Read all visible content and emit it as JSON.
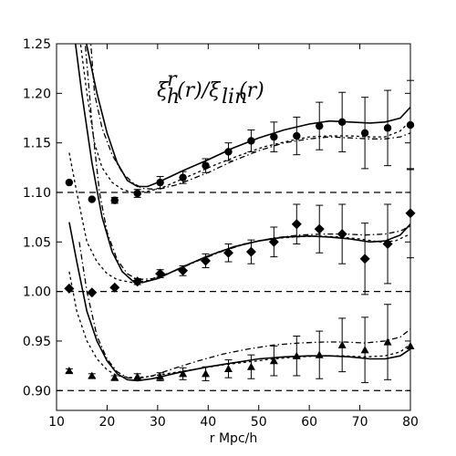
{
  "chart_data": {
    "type": "scatter",
    "title": "",
    "annotation": "ξ_h^r(r)/ξ_lin(r)",
    "xlabel": "r Mpc/h",
    "ylabel": "",
    "xlim": [
      10,
      80
    ],
    "ylim": [
      0.88,
      1.25
    ],
    "x_ticks": [
      "10",
      "20",
      "30",
      "40",
      "50",
      "60",
      "70",
      "80"
    ],
    "y_ticks": [
      "0.90",
      "0.95",
      "1.00",
      "1.05",
      "1.10",
      "1.15",
      "1.20",
      "1.25"
    ],
    "grid": false,
    "reference_lines": [
      1.1,
      1.0,
      0.9
    ],
    "series": [
      {
        "marker": "circle",
        "points": [
          {
            "x": 12.5,
            "y": 1.11,
            "err": 0.0
          },
          {
            "x": 17.0,
            "y": 1.093,
            "err": 0.0
          },
          {
            "x": 21.5,
            "y": 1.092,
            "err": 0.003
          },
          {
            "x": 26.0,
            "y": 1.099,
            "err": 0.004
          },
          {
            "x": 30.5,
            "y": 1.11,
            "err": 0.006
          },
          {
            "x": 35.0,
            "y": 1.115,
            "err": 0.006
          },
          {
            "x": 39.5,
            "y": 1.127,
            "err": 0.007
          },
          {
            "x": 44.0,
            "y": 1.141,
            "err": 0.009
          },
          {
            "x": 48.5,
            "y": 1.152,
            "err": 0.011
          },
          {
            "x": 53.0,
            "y": 1.156,
            "err": 0.015
          },
          {
            "x": 57.5,
            "y": 1.157,
            "err": 0.019
          },
          {
            "x": 62.0,
            "y": 1.167,
            "err": 0.024
          },
          {
            "x": 66.5,
            "y": 1.171,
            "err": 0.03
          },
          {
            "x": 71.0,
            "y": 1.16,
            "err": 0.036
          },
          {
            "x": 75.5,
            "y": 1.165,
            "err": 0.038
          },
          {
            "x": 80.0,
            "y": 1.168,
            "err": 0.045
          }
        ],
        "solid": [
          [
            11.5,
            1.3
          ],
          [
            15.5,
            1.26
          ],
          [
            18.0,
            1.2
          ],
          [
            20.0,
            1.16
          ],
          [
            22.0,
            1.13
          ],
          [
            24.0,
            1.112
          ],
          [
            26.0,
            1.106
          ],
          [
            28.0,
            1.106
          ],
          [
            30.0,
            1.11
          ],
          [
            35.0,
            1.122
          ],
          [
            40.0,
            1.133
          ],
          [
            45.0,
            1.145
          ],
          [
            50.0,
            1.155
          ],
          [
            55.0,
            1.163
          ],
          [
            60.0,
            1.169
          ],
          [
            64.0,
            1.172
          ],
          [
            68.0,
            1.171
          ],
          [
            72.0,
            1.17
          ],
          [
            75.0,
            1.171
          ],
          [
            78.0,
            1.175
          ],
          [
            80.0,
            1.186
          ]
        ],
        "dashed": [
          [
            14.5,
            1.26
          ],
          [
            16.0,
            1.2
          ],
          [
            17.5,
            1.15
          ],
          [
            19.0,
            1.125
          ],
          [
            21.0,
            1.11
          ],
          [
            23.0,
            1.103
          ],
          [
            25.0,
            1.1
          ],
          [
            28.0,
            1.101
          ],
          [
            31.0,
            1.105
          ],
          [
            36.0,
            1.116
          ],
          [
            41.0,
            1.127
          ],
          [
            46.0,
            1.137
          ],
          [
            51.0,
            1.146
          ],
          [
            56.0,
            1.152
          ],
          [
            60.0,
            1.156
          ],
          [
            64.0,
            1.157
          ],
          [
            68.0,
            1.157
          ],
          [
            72.0,
            1.156
          ],
          [
            75.0,
            1.156
          ],
          [
            78.0,
            1.162
          ],
          [
            80.0,
            1.172
          ]
        ],
        "dashdot": [
          [
            16.5,
            1.27
          ],
          [
            17.5,
            1.2
          ],
          [
            19.0,
            1.165
          ],
          [
            21.0,
            1.138
          ],
          [
            23.0,
            1.12
          ],
          [
            25.0,
            1.11
          ],
          [
            27.0,
            1.104
          ],
          [
            30.0,
            1.103
          ],
          [
            34.0,
            1.108
          ],
          [
            40.0,
            1.12
          ],
          [
            45.0,
            1.132
          ],
          [
            50.0,
            1.142
          ],
          [
            55.0,
            1.15
          ],
          [
            60.0,
            1.154
          ],
          [
            64.0,
            1.156
          ],
          [
            68.0,
            1.155
          ],
          [
            72.0,
            1.154
          ],
          [
            75.0,
            1.154
          ],
          [
            78.0,
            1.156
          ],
          [
            80.0,
            1.16
          ]
        ]
      },
      {
        "marker": "diamond",
        "points": [
          {
            "x": 12.5,
            "y": 1.003,
            "err": 0.0
          },
          {
            "x": 17.0,
            "y": 0.999,
            "err": 0.0
          },
          {
            "x": 21.5,
            "y": 1.004,
            "err": 0.0
          },
          {
            "x": 26.0,
            "y": 1.01,
            "err": 0.003
          },
          {
            "x": 30.5,
            "y": 1.018,
            "err": 0.004
          },
          {
            "x": 35.0,
            "y": 1.021,
            "err": 0.005
          },
          {
            "x": 39.5,
            "y": 1.031,
            "err": 0.007
          },
          {
            "x": 44.0,
            "y": 1.039,
            "err": 0.009
          },
          {
            "x": 48.5,
            "y": 1.04,
            "err": 0.012
          },
          {
            "x": 53.0,
            "y": 1.05,
            "err": 0.015
          },
          {
            "x": 57.5,
            "y": 1.068,
            "err": 0.02
          },
          {
            "x": 62.0,
            "y": 1.063,
            "err": 0.024
          },
          {
            "x": 66.5,
            "y": 1.058,
            "err": 0.03
          },
          {
            "x": 71.0,
            "y": 1.033,
            "err": 0.036
          },
          {
            "x": 75.5,
            "y": 1.048,
            "err": 0.04
          },
          {
            "x": 80.0,
            "y": 1.079,
            "err": 0.045
          }
        ],
        "solid": [
          [
            13.0,
            1.28
          ],
          [
            15.0,
            1.2
          ],
          [
            17.0,
            1.13
          ],
          [
            19.0,
            1.075
          ],
          [
            21.0,
            1.04
          ],
          [
            23.0,
            1.02
          ],
          [
            25.0,
            1.011
          ],
          [
            27.0,
            1.009
          ],
          [
            30.0,
            1.013
          ],
          [
            35.0,
            1.025
          ],
          [
            40.0,
            1.036
          ],
          [
            45.0,
            1.045
          ],
          [
            50.0,
            1.051
          ],
          [
            55.0,
            1.055
          ],
          [
            60.0,
            1.056
          ],
          [
            64.0,
            1.055
          ],
          [
            68.0,
            1.053
          ],
          [
            72.0,
            1.05
          ],
          [
            75.0,
            1.051
          ],
          [
            78.0,
            1.057
          ],
          [
            80.0,
            1.068
          ]
        ],
        "dashed": [
          [
            12.5,
            1.14
          ],
          [
            14.0,
            1.1
          ],
          [
            16.0,
            1.05
          ],
          [
            18.0,
            1.03
          ],
          [
            20.0,
            1.018
          ],
          [
            22.0,
            1.012
          ],
          [
            25.0,
            1.009
          ],
          [
            28.0,
            1.011
          ],
          [
            32.0,
            1.018
          ],
          [
            37.0,
            1.029
          ],
          [
            42.0,
            1.04
          ],
          [
            47.0,
            1.048
          ],
          [
            52.0,
            1.053
          ],
          [
            57.0,
            1.055
          ],
          [
            62.0,
            1.056
          ],
          [
            66.0,
            1.055
          ],
          [
            70.0,
            1.053
          ],
          [
            74.0,
            1.05
          ],
          [
            77.0,
            1.051
          ],
          [
            80.0,
            1.058
          ]
        ],
        "dashdot": [
          [
            15.5,
            1.26
          ],
          [
            17.0,
            1.17
          ],
          [
            18.5,
            1.1
          ],
          [
            20.0,
            1.06
          ],
          [
            22.0,
            1.032
          ],
          [
            24.0,
            1.018
          ],
          [
            26.0,
            1.012
          ],
          [
            29.0,
            1.013
          ],
          [
            33.0,
            1.02
          ],
          [
            38.0,
            1.031
          ],
          [
            43.0,
            1.041
          ],
          [
            48.0,
            1.049
          ],
          [
            53.0,
            1.054
          ],
          [
            58.0,
            1.057
          ],
          [
            63.0,
            1.058
          ],
          [
            67.0,
            1.058
          ],
          [
            71.0,
            1.057
          ],
          [
            75.0,
            1.058
          ],
          [
            78.0,
            1.061
          ],
          [
            80.0,
            1.066
          ]
        ]
      },
      {
        "marker": "triangle",
        "points": [
          {
            "x": 12.5,
            "y": 0.92,
            "err": 0.002
          },
          {
            "x": 17.0,
            "y": 0.915,
            "err": 0.002
          },
          {
            "x": 21.5,
            "y": 0.913,
            "err": 0.002
          },
          {
            "x": 26.0,
            "y": 0.914,
            "err": 0.003
          },
          {
            "x": 30.5,
            "y": 0.914,
            "err": 0.004
          },
          {
            "x": 35.0,
            "y": 0.917,
            "err": 0.006
          },
          {
            "x": 39.5,
            "y": 0.917,
            "err": 0.007
          },
          {
            "x": 44.0,
            "y": 0.922,
            "err": 0.009
          },
          {
            "x": 48.5,
            "y": 0.924,
            "err": 0.012
          },
          {
            "x": 53.0,
            "y": 0.93,
            "err": 0.015
          },
          {
            "x": 57.5,
            "y": 0.935,
            "err": 0.02
          },
          {
            "x": 62.0,
            "y": 0.936,
            "err": 0.024
          },
          {
            "x": 66.5,
            "y": 0.946,
            "err": 0.027
          },
          {
            "x": 71.0,
            "y": 0.941,
            "err": 0.033
          },
          {
            "x": 75.5,
            "y": 0.949,
            "err": 0.038
          },
          {
            "x": 80.0,
            "y": 0.945,
            "err": 0.0
          }
        ],
        "solid": [
          [
            12.5,
            1.07
          ],
          [
            14.0,
            1.03
          ],
          [
            16.0,
            0.98
          ],
          [
            18.0,
            0.95
          ],
          [
            20.0,
            0.93
          ],
          [
            22.0,
            0.917
          ],
          [
            24.0,
            0.911
          ],
          [
            26.0,
            0.91
          ],
          [
            29.0,
            0.912
          ],
          [
            34.0,
            0.918
          ],
          [
            40.0,
            0.924
          ],
          [
            45.0,
            0.928
          ],
          [
            50.0,
            0.932
          ],
          [
            55.0,
            0.934
          ],
          [
            60.0,
            0.935
          ],
          [
            64.0,
            0.935
          ],
          [
            68.0,
            0.934
          ],
          [
            72.0,
            0.932
          ],
          [
            75.0,
            0.932
          ],
          [
            78.0,
            0.935
          ],
          [
            80.0,
            0.942
          ]
        ],
        "dashed": [
          [
            12.5,
            1.02
          ],
          [
            14.0,
            0.98
          ],
          [
            16.0,
            0.95
          ],
          [
            18.0,
            0.932
          ],
          [
            20.0,
            0.921
          ],
          [
            22.0,
            0.915
          ],
          [
            25.0,
            0.913
          ],
          [
            28.0,
            0.914
          ],
          [
            33.0,
            0.918
          ],
          [
            38.0,
            0.922
          ],
          [
            43.0,
            0.926
          ],
          [
            48.0,
            0.929
          ],
          [
            53.0,
            0.932
          ],
          [
            58.0,
            0.934
          ],
          [
            63.0,
            0.935
          ],
          [
            67.0,
            0.935
          ],
          [
            71.0,
            0.934
          ],
          [
            75.0,
            0.935
          ],
          [
            78.0,
            0.939
          ],
          [
            80.0,
            0.947
          ]
        ],
        "dashdot": [
          [
            14.5,
            1.05
          ],
          [
            16.0,
            1.0
          ],
          [
            18.0,
            0.955
          ],
          [
            20.0,
            0.932
          ],
          [
            22.0,
            0.919
          ],
          [
            24.0,
            0.913
          ],
          [
            26.0,
            0.912
          ],
          [
            29.0,
            0.915
          ],
          [
            33.0,
            0.922
          ],
          [
            38.0,
            0.93
          ],
          [
            43.0,
            0.937
          ],
          [
            48.0,
            0.942
          ],
          [
            53.0,
            0.946
          ],
          [
            58.0,
            0.948
          ],
          [
            63.0,
            0.949
          ],
          [
            67.0,
            0.949
          ],
          [
            71.0,
            0.948
          ],
          [
            75.0,
            0.95
          ],
          [
            78.0,
            0.954
          ],
          [
            80.0,
            0.962
          ]
        ]
      }
    ]
  }
}
